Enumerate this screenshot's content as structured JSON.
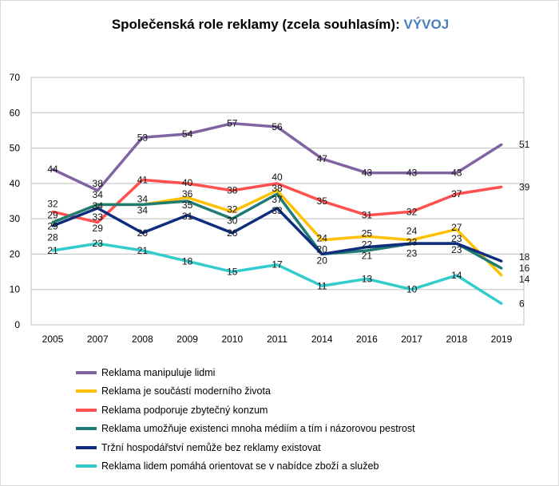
{
  "chart_data": {
    "type": "line",
    "title": "Společenská role reklamy (zcela souhlasím):",
    "title_highlight": "VÝVOJ",
    "title_highlight_color": "#4a7ebb",
    "categories": [
      "2005",
      "2007",
      "2008",
      "2009",
      "2010",
      "2011",
      "2014",
      "2016",
      "2017",
      "2018",
      "2019"
    ],
    "ylim": [
      0,
      70
    ],
    "yticks": [
      0,
      10,
      20,
      30,
      40,
      50,
      60,
      70
    ],
    "grid": true,
    "legend_position": "bottom",
    "series": [
      {
        "name": "Reklama manipuluje lidmi",
        "color": "#8064a2",
        "values": [
          44,
          38,
          53,
          54,
          57,
          56,
          47,
          43,
          43,
          43,
          51
        ]
      },
      {
        "name": "Reklama je součástí moderního života",
        "color": "#ffc000",
        "values": [
          29,
          34,
          34,
          36,
          32,
          38,
          24,
          25,
          24,
          27,
          14
        ]
      },
      {
        "name": "Reklama podporuje zbytečný konzum",
        "color": "#ff4f4f",
        "values": [
          32,
          29,
          41,
          40,
          38,
          40,
          35,
          31,
          32,
          37,
          39
        ]
      },
      {
        "name": "Reklama umožňuje existenci mnoha médiím a tím i názorovou pestrost",
        "color": "#1f7b73",
        "values": [
          29,
          34,
          34,
          35,
          30,
          37,
          20,
          21,
          23,
          23,
          16
        ]
      },
      {
        "name": "Tržní hospodářství nemůže bez reklamy existovat",
        "color": "#0e2d7e",
        "values": [
          28,
          33,
          26,
          31,
          26,
          33,
          20,
          22,
          23,
          23,
          18
        ]
      },
      {
        "name": "Reklama lidem pomáhá orientovat se v nabídce zboží a služeb",
        "color": "#33cccc",
        "values": [
          21,
          23,
          21,
          18,
          15,
          17,
          11,
          13,
          10,
          14,
          6
        ]
      }
    ]
  }
}
